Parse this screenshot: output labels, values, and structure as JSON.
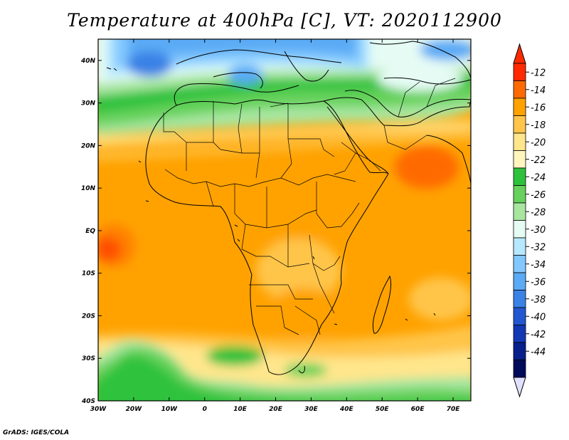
{
  "title": "Temperature at 400hPa [C], VT: 2020112900",
  "credit": "GrADS: IGES/COLA",
  "axes": {
    "lon_labels": [
      "30W",
      "20W",
      "10W",
      "0",
      "10E",
      "20E",
      "30E",
      "40E",
      "50E",
      "60E",
      "70E"
    ],
    "lon_values": [
      -30,
      -20,
      -10,
      0,
      10,
      20,
      30,
      40,
      50,
      60,
      70
    ],
    "lat_labels": [
      "40N",
      "30N",
      "20N",
      "10N",
      "EQ",
      "10S",
      "20S",
      "30S",
      "40S"
    ],
    "lat_values": [
      40,
      30,
      20,
      10,
      0,
      -10,
      -20,
      -30,
      -40
    ],
    "lon_range": [
      -30,
      75
    ],
    "lat_range": [
      -40,
      45
    ]
  },
  "colorbar": {
    "labels": [
      "-12",
      "-14",
      "-16",
      "-18",
      "-20",
      "-22",
      "-24",
      "-26",
      "-28",
      "-30",
      "-32",
      "-34",
      "-36",
      "-38",
      "-40",
      "-42",
      "-44"
    ],
    "colors": [
      "#ff2a00",
      "#ff6a00",
      "#ffa200",
      "#ffc54a",
      "#ffe68c",
      "#fff5bd",
      "#2ec23c",
      "#66d25b",
      "#a8e6a0",
      "#e5fbf4",
      "#b6e8ff",
      "#82c8ff",
      "#5aaaf5",
      "#3a82e6",
      "#2357d2",
      "#1238b4",
      "#08208c",
      "#000a5a"
    ],
    "top_triangle": "#ff2a00",
    "bottom_triangle": "#e0e0ff"
  },
  "map": {
    "projection": "latlon",
    "domain": "Africa, Arabia and Europe"
  }
}
